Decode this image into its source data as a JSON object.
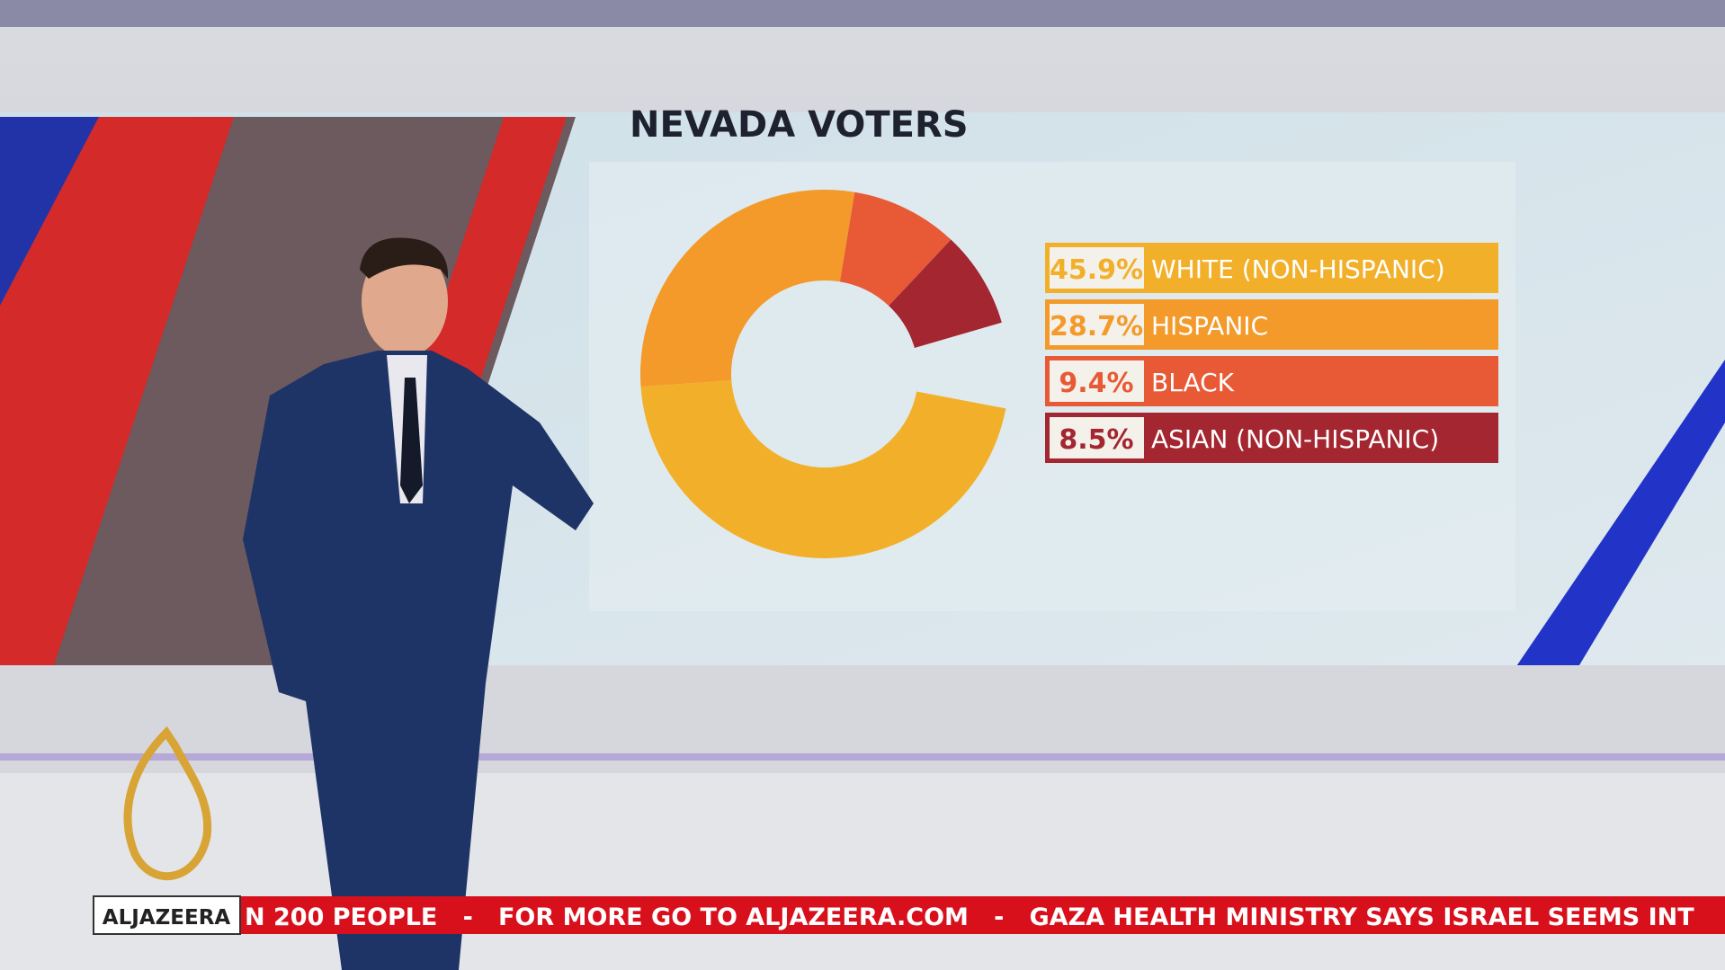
{
  "chart_data": {
    "type": "pie",
    "title": "NEVADA VOTERS",
    "categories": [
      "WHITE (NON-HISPANIC)",
      "HISPANIC",
      "BLACK",
      "ASIAN (NON-HISPANIC)"
    ],
    "values": [
      45.9,
      28.7,
      9.4,
      8.5
    ],
    "value_labels": [
      "45.9%",
      "28.7%",
      "9.4%",
      "8.5%"
    ],
    "colors": [
      "#f2b02a",
      "#f39a2a",
      "#e85a36",
      "#a32630"
    ]
  },
  "ticker": {
    "logo": "ALJAZEERA",
    "text": "N 200 PEOPLE   -   FOR MORE GO TO ALJAZEERA.COM   -   GAZA HEALTH MINISTRY SAYS ISRAEL SEEMS INT"
  }
}
